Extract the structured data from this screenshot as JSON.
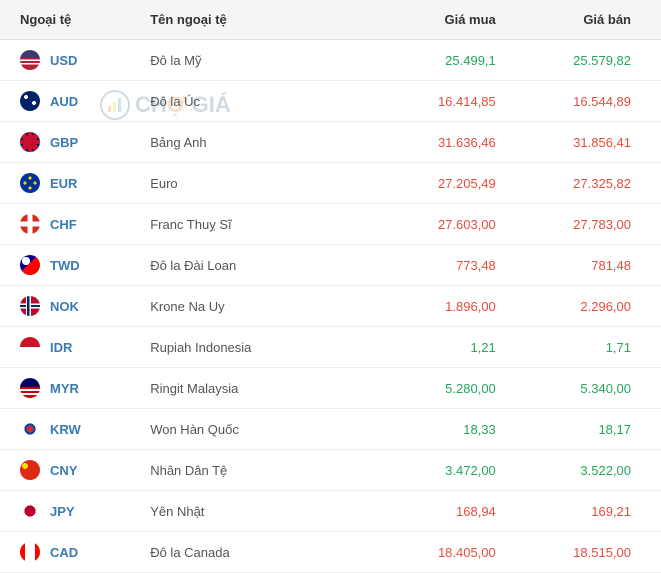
{
  "headers": {
    "currency": "Ngoại tệ",
    "name": "Tên ngoại tệ",
    "buy": "Giá mua",
    "sell": "Giá bán"
  },
  "watermark": {
    "text_part1": "CH",
    "text_accent": "Ợ",
    "text_part2": " GIÁ"
  },
  "colors": {
    "up": "#26a65b",
    "down": "#e74c3c",
    "code": "#3a7ab5",
    "name": "#555555"
  },
  "flags": {
    "USD": {
      "bg": "linear-gradient(to bottom, #3c3b6e 0%, #3c3b6e 40%, #b22234 40%, #b22234 48%, #fff 48%, #fff 56%, #b22234 56%, #b22234 64%, #fff 64%, #fff 72%, #b22234 72%)"
    },
    "AUD": {
      "bg": "radial-gradient(circle at 30% 30%, #fff 2px, transparent 2px), radial-gradient(circle at 70% 60%, #fff 2px, transparent 2px), #012169"
    },
    "GBP": {
      "bg": "linear-gradient(45deg, transparent 40%, #c8102e 40%, #c8102e 60%, transparent 60%), linear-gradient(-45deg, transparent 40%, #c8102e 40%, #c8102e 60%, transparent 60%), linear-gradient(to bottom, transparent 40%, #c8102e 40%, #c8102e 60%, transparent 60%), linear-gradient(to right, transparent 40%, #c8102e 40%, #c8102e 60%, transparent 60%), #012169"
    },
    "EUR": {
      "bg": "radial-gradient(circle at 50% 25%, #ffcc00 1.5px, transparent 1.5px), radial-gradient(circle at 50% 75%, #ffcc00 1.5px, transparent 1.5px), radial-gradient(circle at 25% 50%, #ffcc00 1.5px, transparent 1.5px), radial-gradient(circle at 75% 50%, #ffcc00 1.5px, transparent 1.5px), #003399"
    },
    "CHF": {
      "bg": "linear-gradient(to right, transparent 38%, #fff 38%, #fff 62%, transparent 62%), linear-gradient(to bottom, transparent 38%, #fff 38%, #fff 62%, transparent 62%), #da291c"
    },
    "TWD": {
      "bg": "radial-gradient(circle at 30% 30%, #fff 4px, transparent 4px), linear-gradient(to bottom right, #000097 0%, #000097 45%, transparent 45%), #fe0000"
    },
    "NOK": {
      "bg": "linear-gradient(to right, transparent 30%, #fff 30%, #fff 36%, #002868 36%, #002868 48%, #fff 48%, #fff 54%, transparent 54%), linear-gradient(to bottom, transparent 38%, #fff 38%, #fff 44%, #002868 44%, #002868 56%, #fff 56%, #fff 62%, transparent 62%), #ba0c2f"
    },
    "IDR": {
      "bg": "linear-gradient(to bottom, #ce1126 0%, #ce1126 50%, #fff 50%)"
    },
    "MYR": {
      "bg": "linear-gradient(to bottom, #010066 0%, #010066 45%, #cc0001 45%, #cc0001 55%, #fff 55%, #fff 65%, #cc0001 65%, #cc0001 75%, #fff 75%, #fff 85%, #cc0001 85%)"
    },
    "KRW": {
      "bg": "radial-gradient(circle at 50% 50%, #cd2e3a 0%, #cd2e3a 25%, #0047a0 25%, #0047a0 40%, transparent 40%), #fff"
    },
    "CNY": {
      "bg": "radial-gradient(circle at 25% 30%, #ffde00 3px, transparent 3px), #de2910"
    },
    "JPY": {
      "bg": "radial-gradient(circle at 50% 50%, #bc002d 0%, #bc002d 40%, #fff 40%)"
    },
    "CAD": {
      "bg": "linear-gradient(to right, #ff0000 0%, #ff0000 25%, #fff 25%, #fff 75%, #ff0000 75%), radial-gradient(circle at 50% 50%, #ff0000 3px, transparent 3px)"
    }
  },
  "rows": [
    {
      "code": "USD",
      "name": "Đô la Mỹ",
      "buy": "25.499,1",
      "buy_trend": "up",
      "sell": "25.579,82",
      "sell_trend": "up"
    },
    {
      "code": "AUD",
      "name": "Đô la Úc",
      "buy": "16.414,85",
      "buy_trend": "down",
      "sell": "16.544,89",
      "sell_trend": "down"
    },
    {
      "code": "GBP",
      "name": "Bảng Anh",
      "buy": "31.636,46",
      "buy_trend": "down",
      "sell": "31.856,41",
      "sell_trend": "down"
    },
    {
      "code": "EUR",
      "name": "Euro",
      "buy": "27.205,49",
      "buy_trend": "down",
      "sell": "27.325,82",
      "sell_trend": "down"
    },
    {
      "code": "CHF",
      "name": "Franc Thuỵ Sĩ",
      "buy": "27.603,00",
      "buy_trend": "down",
      "sell": "27.783,00",
      "sell_trend": "down"
    },
    {
      "code": "TWD",
      "name": "Đô la Đài Loan",
      "buy": "773,48",
      "buy_trend": "down",
      "sell": "781,48",
      "sell_trend": "down"
    },
    {
      "code": "NOK",
      "name": "Krone Na Uy",
      "buy": "1.896,00",
      "buy_trend": "down",
      "sell": "2.296,00",
      "sell_trend": "down"
    },
    {
      "code": "IDR",
      "name": "Rupiah Indonesia",
      "buy": "1,21",
      "buy_trend": "up",
      "sell": "1,71",
      "sell_trend": "up"
    },
    {
      "code": "MYR",
      "name": "Ringit Malaysia",
      "buy": "5.280,00",
      "buy_trend": "up",
      "sell": "5.340,00",
      "sell_trend": "up"
    },
    {
      "code": "KRW",
      "name": "Won Hàn Quốc",
      "buy": "18,33",
      "buy_trend": "up",
      "sell": "18,17",
      "sell_trend": "up"
    },
    {
      "code": "CNY",
      "name": "Nhân Dân Tệ",
      "buy": "3.472,00",
      "buy_trend": "up",
      "sell": "3.522,00",
      "sell_trend": "up"
    },
    {
      "code": "JPY",
      "name": "Yên Nhật",
      "buy": "168,94",
      "buy_trend": "down",
      "sell": "169,21",
      "sell_trend": "down"
    },
    {
      "code": "CAD",
      "name": "Đô la Canada",
      "buy": "18.405,00",
      "buy_trend": "down",
      "sell": "18.515,00",
      "sell_trend": "down"
    }
  ]
}
